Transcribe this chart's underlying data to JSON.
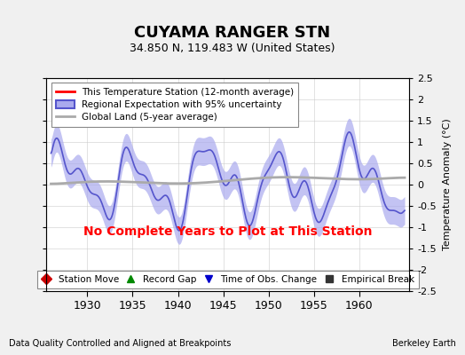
{
  "title": "CUYAMA RANGER STN",
  "subtitle": "34.850 N, 119.483 W (United States)",
  "ylabel": "Temperature Anomaly (°C)",
  "xlim": [
    1925.5,
    1965.5
  ],
  "ylim": [
    -2.5,
    2.5
  ],
  "yticks": [
    -2.5,
    -2,
    -1.5,
    -1,
    -0.5,
    0,
    0.5,
    1,
    1.5,
    2,
    2.5
  ],
  "xticks": [
    1930,
    1935,
    1940,
    1945,
    1950,
    1955,
    1960
  ],
  "no_data_text": "No Complete Years to Plot at This Station",
  "no_data_color": "#ff0000",
  "bg_color": "#f0f0f0",
  "plot_bg_color": "#ffffff",
  "legend1_entries": [
    {
      "label": "This Temperature Station (12-month average)",
      "color": "#ff0000",
      "lw": 2
    },
    {
      "label": "Regional Expectation with 95% uncertainty",
      "color": "#5555cc",
      "lw": 2,
      "fill": "#aaaaee"
    },
    {
      "label": "Global Land (5-year average)",
      "color": "#aaaaaa",
      "lw": 2
    }
  ],
  "legend2_entries": [
    {
      "label": "Station Move",
      "marker": "D",
      "color": "#cc0000"
    },
    {
      "label": "Record Gap",
      "marker": "^",
      "color": "#008800"
    },
    {
      "label": "Time of Obs. Change",
      "marker": "v",
      "color": "#0000cc"
    },
    {
      "label": "Empirical Break",
      "marker": "s",
      "color": "#333333"
    }
  ],
  "footer_left": "Data Quality Controlled and Aligned at Breakpoints",
  "footer_right": "Berkeley Earth",
  "seed": 42
}
